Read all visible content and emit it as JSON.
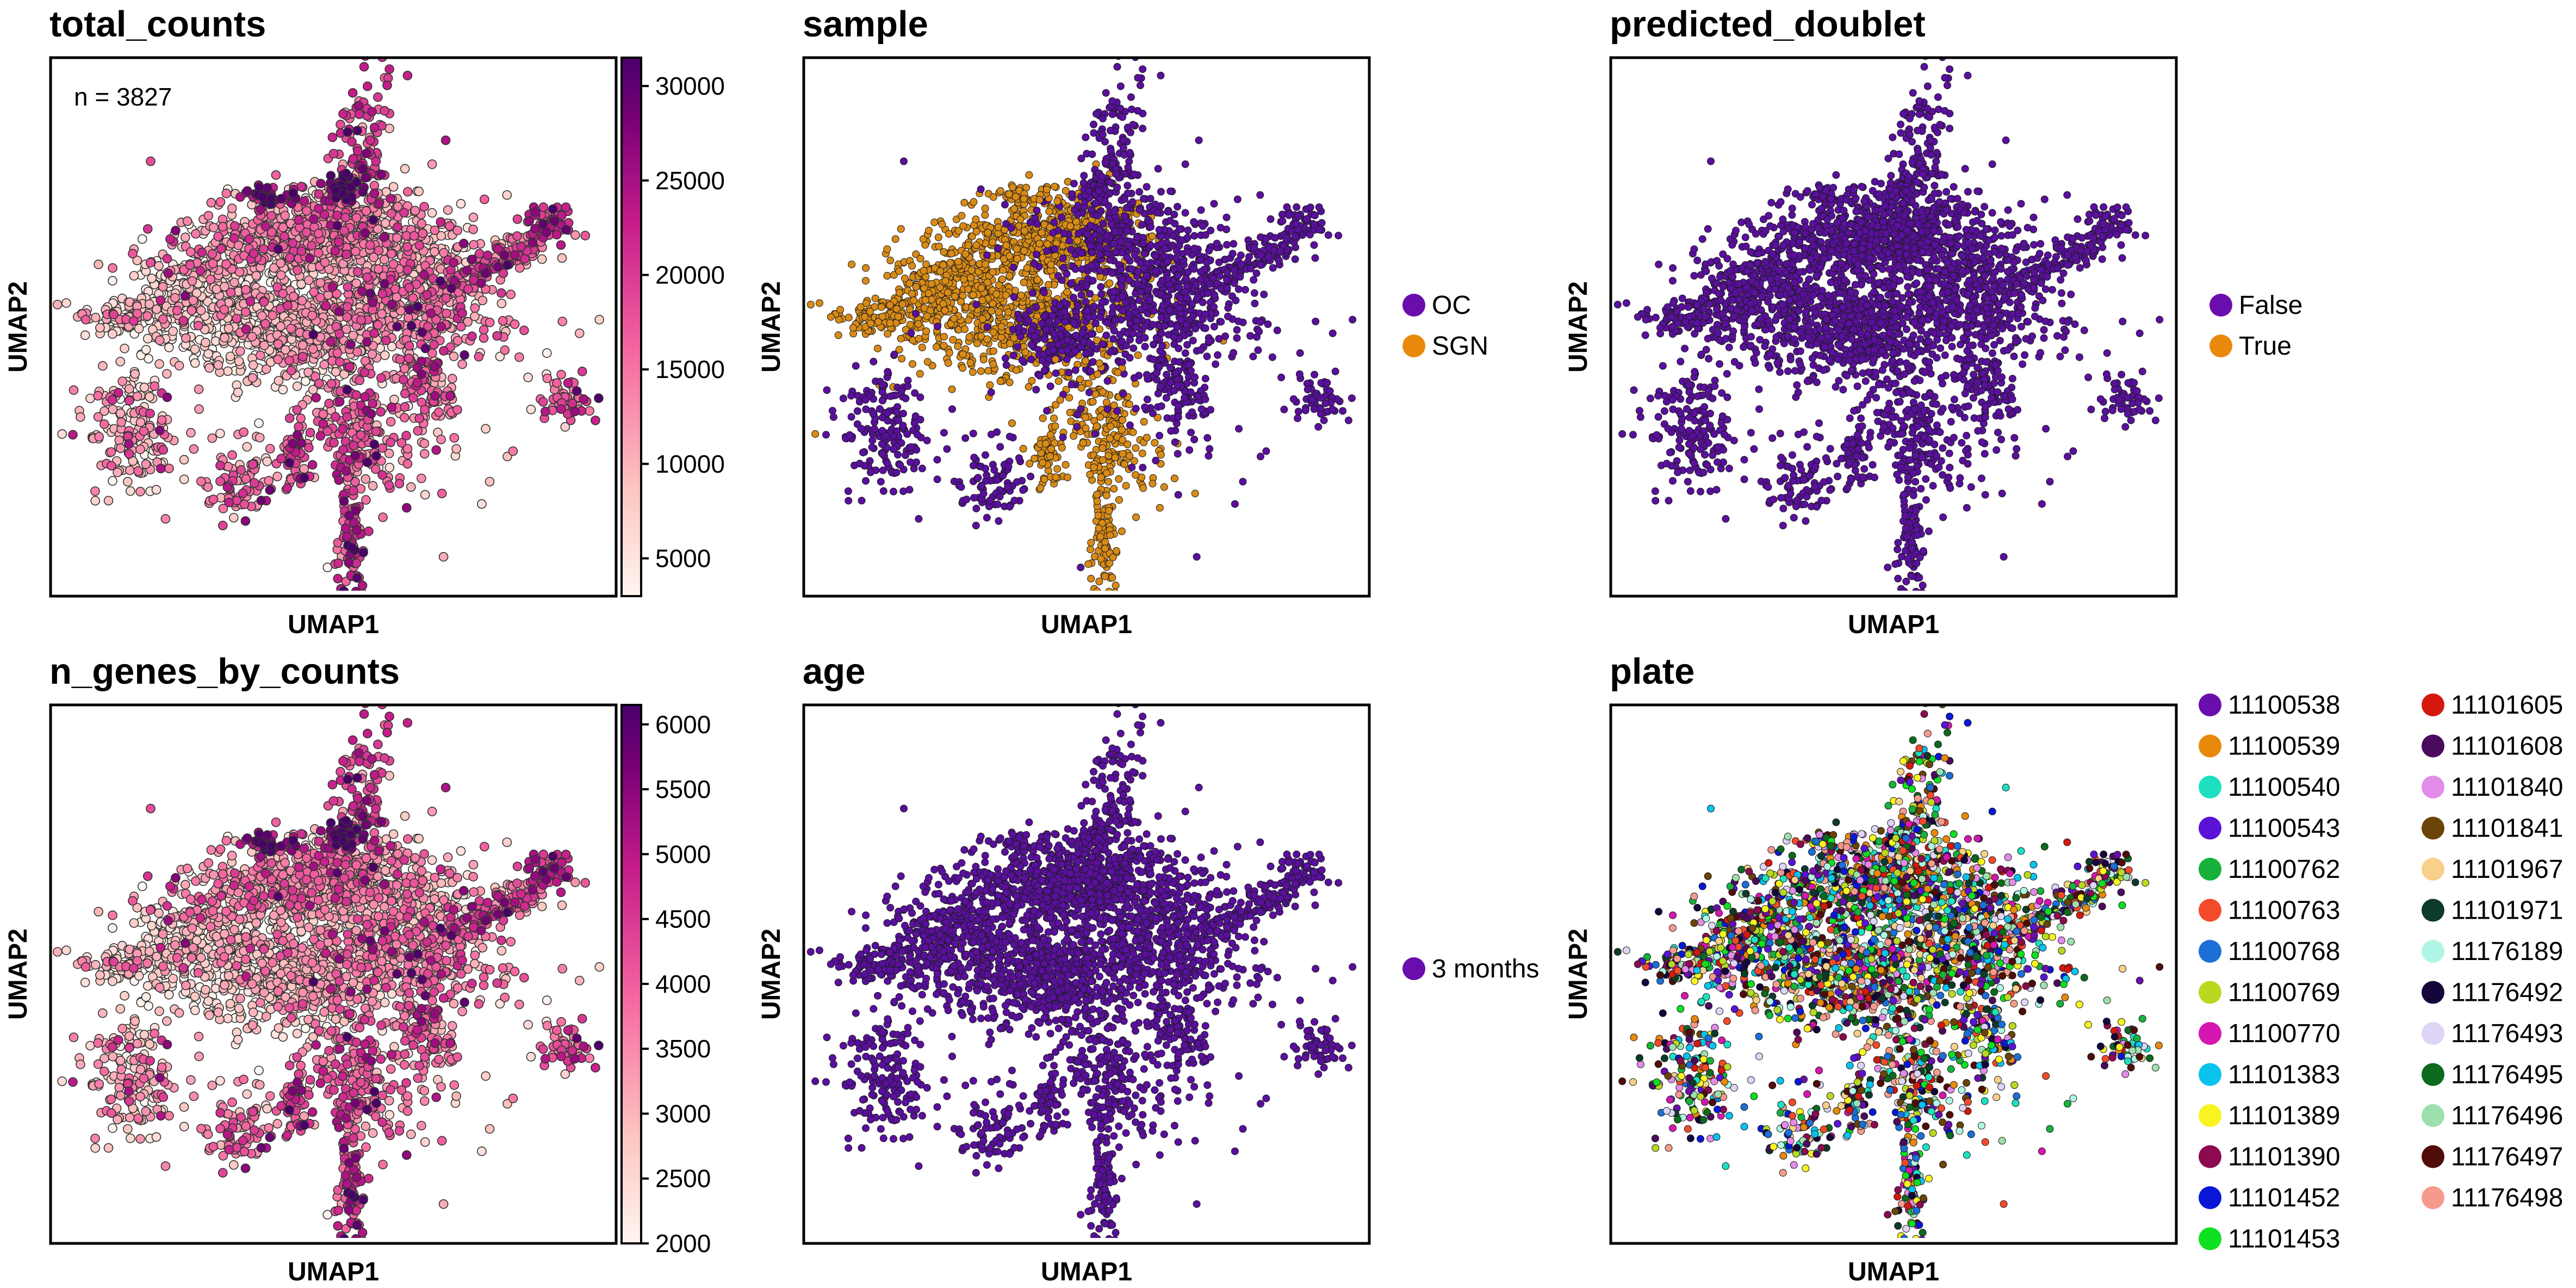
{
  "figure": {
    "axis_xlabel": "UMAP1",
    "axis_ylabel": "UMAP2",
    "colors": {
      "pink_ramp": [
        "#fff5f0",
        "#fcc5c0",
        "#f768a1",
        "#c51b8a",
        "#7a0177",
        "#49006a"
      ],
      "purple": "#5a0f9e",
      "orange": "#d98b16"
    }
  },
  "chart_data": [
    {
      "id": "total_counts",
      "type": "scatter",
      "title": "total_counts",
      "xlabel": "UMAP1",
      "ylabel": "UMAP2",
      "annotation": "n = 3827",
      "color_mode": "continuous",
      "colorbar": {
        "range": [
          3000,
          31500
        ],
        "ticks": [
          "30000",
          "25000",
          "20000",
          "15000",
          "10000",
          "5000"
        ],
        "tick_values": [
          30000,
          25000,
          20000,
          15000,
          10000,
          5000
        ]
      },
      "point_count": 3827,
      "grid": false
    },
    {
      "id": "sample",
      "type": "scatter",
      "title": "sample",
      "xlabel": "UMAP1",
      "ylabel": "UMAP2",
      "color_mode": "categorical_sample",
      "legend_position": "right",
      "legend": [
        {
          "label": "OC",
          "color": "#6a0dad"
        },
        {
          "label": "SGN",
          "color": "#e8890c"
        }
      ],
      "grid": false
    },
    {
      "id": "predicted_doublet",
      "type": "scatter",
      "title": "predicted_doublet",
      "xlabel": "UMAP1",
      "ylabel": "UMAP2",
      "color_mode": "single",
      "legend_position": "right",
      "legend": [
        {
          "label": "False",
          "color": "#6a0dad"
        },
        {
          "label": "True",
          "color": "#e8890c"
        }
      ],
      "grid": false
    },
    {
      "id": "n_genes_by_counts",
      "type": "scatter",
      "title": "n_genes_by_counts",
      "xlabel": "UMAP1",
      "ylabel": "UMAP2",
      "color_mode": "continuous",
      "colorbar": {
        "range": [
          2000,
          6150
        ],
        "ticks": [
          "6000",
          "5500",
          "5000",
          "4500",
          "4000",
          "3500",
          "3000",
          "2500",
          "2000"
        ],
        "tick_values": [
          6000,
          5500,
          5000,
          4500,
          4000,
          3500,
          3000,
          2500,
          2000
        ]
      },
      "grid": false
    },
    {
      "id": "age",
      "type": "scatter",
      "title": "age",
      "xlabel": "UMAP1",
      "ylabel": "UMAP2",
      "color_mode": "single",
      "legend_position": "right",
      "legend": [
        {
          "label": "3 months",
          "color": "#6a0dad"
        }
      ],
      "grid": false
    },
    {
      "id": "plate",
      "type": "scatter",
      "title": "plate",
      "xlabel": "UMAP1",
      "ylabel": "UMAP2",
      "color_mode": "categorical_multi",
      "legend_position": "right",
      "legend": [
        {
          "label": "11100538",
          "color": "#6a0dad"
        },
        {
          "label": "11100539",
          "color": "#e8890c"
        },
        {
          "label": "11100540",
          "color": "#1de0c0"
        },
        {
          "label": "11100543",
          "color": "#5a13d6"
        },
        {
          "label": "11100762",
          "color": "#16b23c"
        },
        {
          "label": "11100763",
          "color": "#f34a2a"
        },
        {
          "label": "11100768",
          "color": "#1b6fd6"
        },
        {
          "label": "11100769",
          "color": "#b9d921"
        },
        {
          "label": "11100770",
          "color": "#d616b0"
        },
        {
          "label": "11101383",
          "color": "#08c3ee"
        },
        {
          "label": "11101389",
          "color": "#f9f321"
        },
        {
          "label": "11101390",
          "color": "#8c0a4f"
        },
        {
          "label": "11101452",
          "color": "#0a17d6"
        },
        {
          "label": "11101453",
          "color": "#0de020"
        },
        {
          "label": "11101605",
          "color": "#d4180e"
        },
        {
          "label": "11101608",
          "color": "#4a0a5e"
        },
        {
          "label": "11101840",
          "color": "#e28be8"
        },
        {
          "label": "11101841",
          "color": "#6b4408"
        },
        {
          "label": "11101967",
          "color": "#f8d08a"
        },
        {
          "label": "11101971",
          "color": "#0c3b2b"
        },
        {
          "label": "11176189",
          "color": "#aff5e6"
        },
        {
          "label": "11176492",
          "color": "#14063a"
        },
        {
          "label": "11176493",
          "color": "#ddd4f6"
        },
        {
          "label": "11176495",
          "color": "#0b6a1e"
        },
        {
          "label": "11176496",
          "color": "#9ee0ad"
        },
        {
          "label": "11176497",
          "color": "#4f0c08"
        },
        {
          "label": "11176498",
          "color": "#f59a8d"
        }
      ],
      "grid": false
    }
  ]
}
